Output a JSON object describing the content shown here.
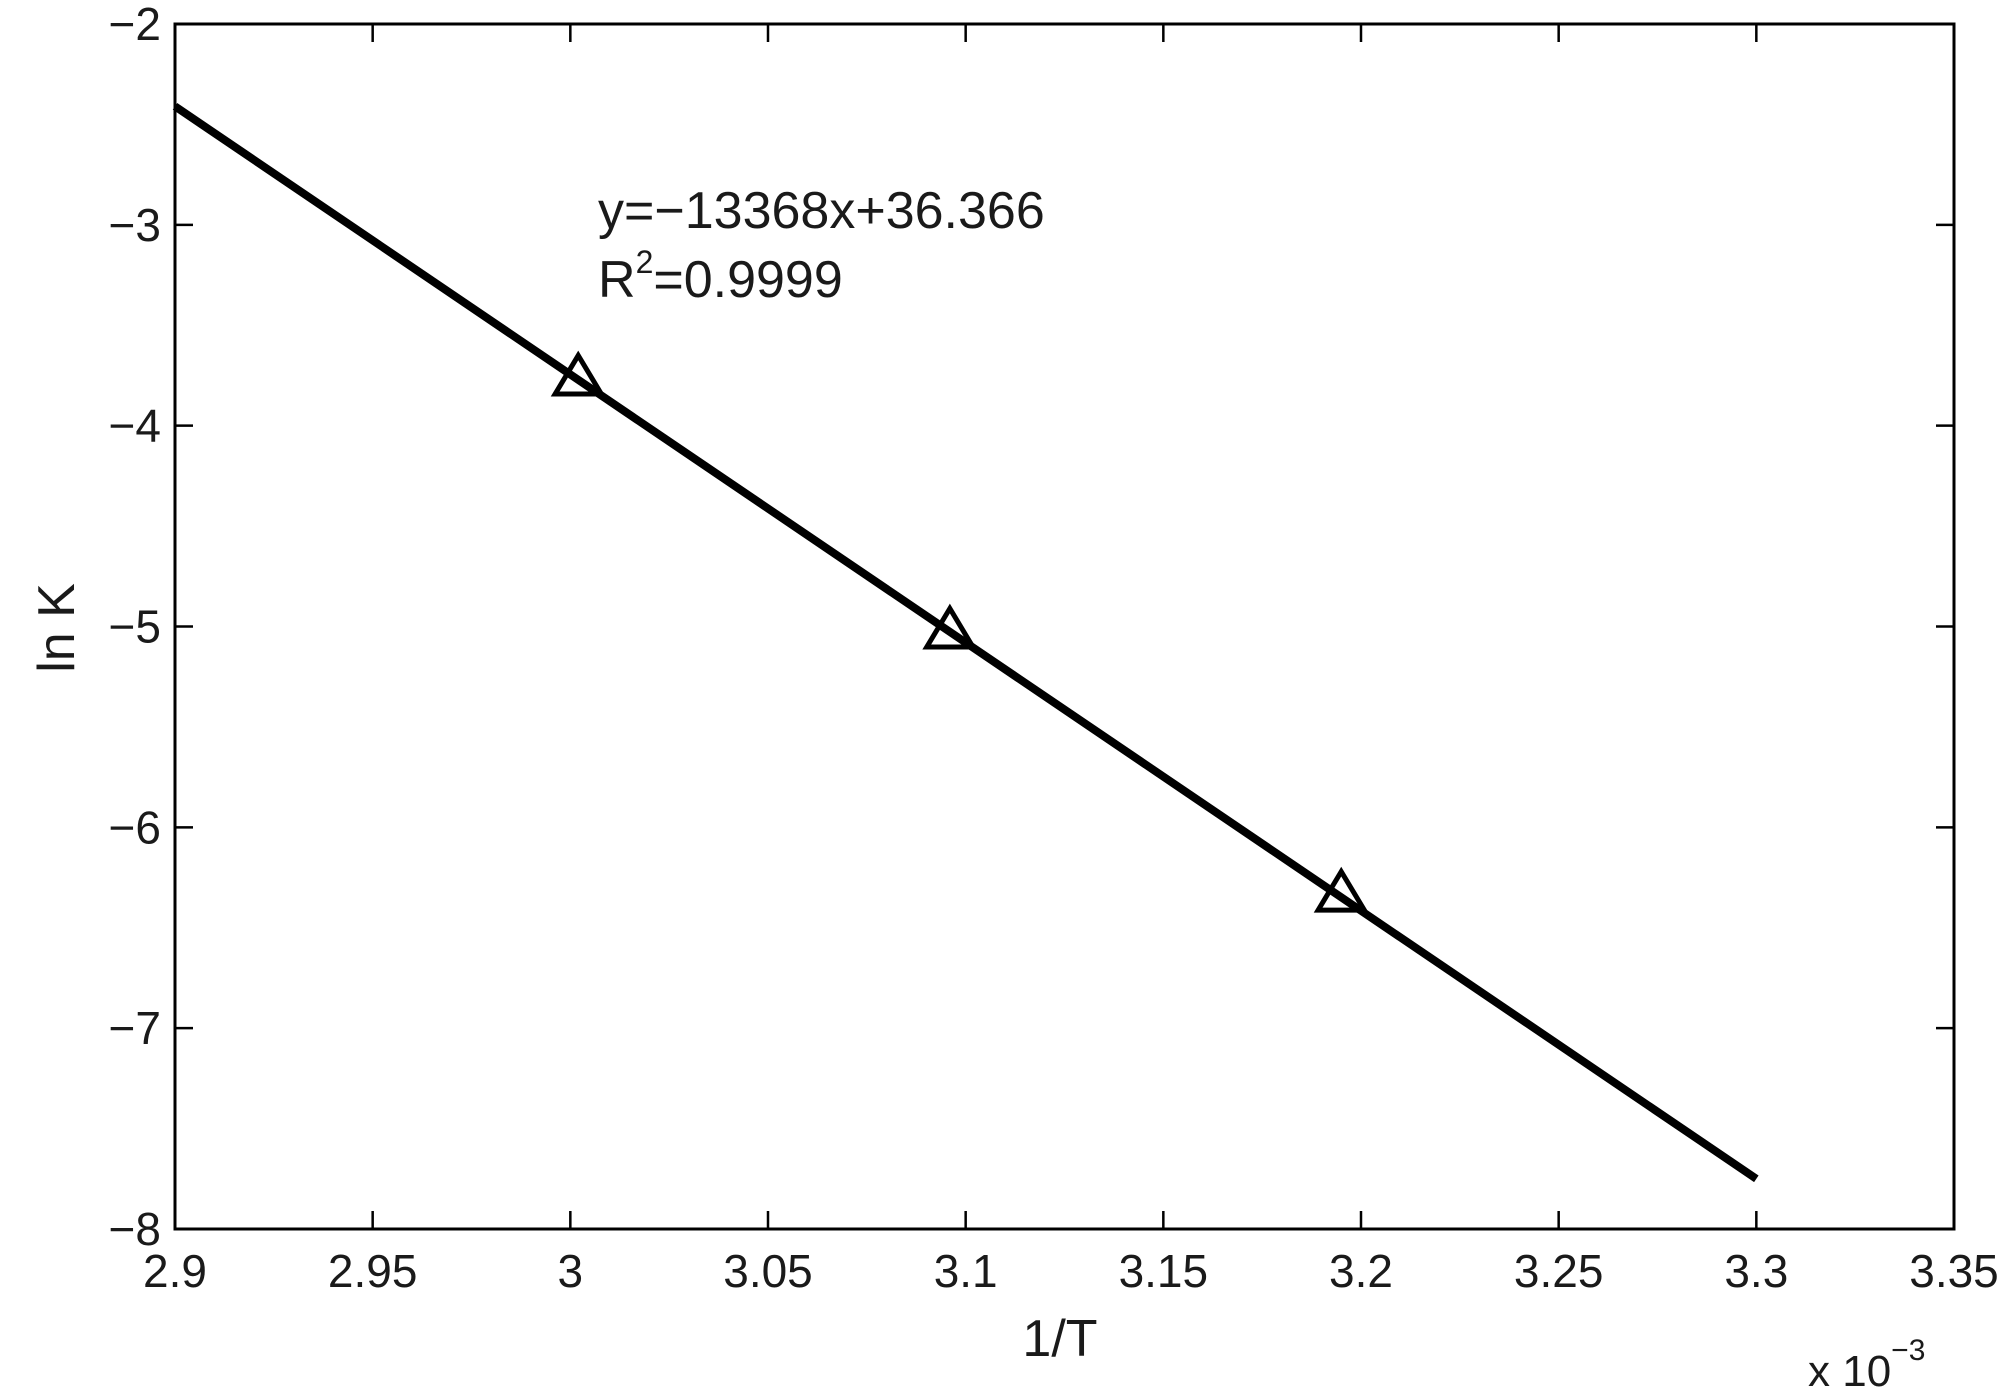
{
  "chart_data": {
    "type": "line",
    "xlabel": "1/T",
    "ylabel": "ln K",
    "x_multiplier": {
      "base": "x 10",
      "exponent": "−3"
    },
    "xlim": [
      2.9,
      3.35
    ],
    "ylim": [
      -8,
      -2
    ],
    "x_ticks": [
      2.9,
      2.95,
      3.0,
      3.05,
      3.1,
      3.15,
      3.2,
      3.25,
      3.3,
      3.35
    ],
    "x_tick_labels": [
      "2.9",
      "2.95",
      "3",
      "3.05",
      "3.1",
      "3.15",
      "3.2",
      "3.25",
      "3.3",
      "3.35"
    ],
    "y_ticks": [
      -2,
      -3,
      -4,
      -5,
      -6,
      -7,
      -8
    ],
    "y_tick_labels": [
      "−2",
      "−3",
      "−4",
      "−5",
      "−6",
      "−7",
      "−8"
    ],
    "grid": false,
    "series": [
      {
        "kind": "fit-line",
        "x": [
          2.9,
          3.3
        ],
        "y": [
          -2.41,
          -7.75
        ],
        "color": "#000000"
      },
      {
        "kind": "markers",
        "marker": "triangle",
        "x": [
          3.002,
          3.096,
          3.195
        ],
        "y": [
          -3.76,
          -5.02,
          -6.33
        ],
        "color": "#000000"
      }
    ],
    "annotations": {
      "equation": "y=−13368x+36.366",
      "r2_base": "R",
      "r2_exp": "2",
      "r2_value": "=0.9999"
    }
  }
}
